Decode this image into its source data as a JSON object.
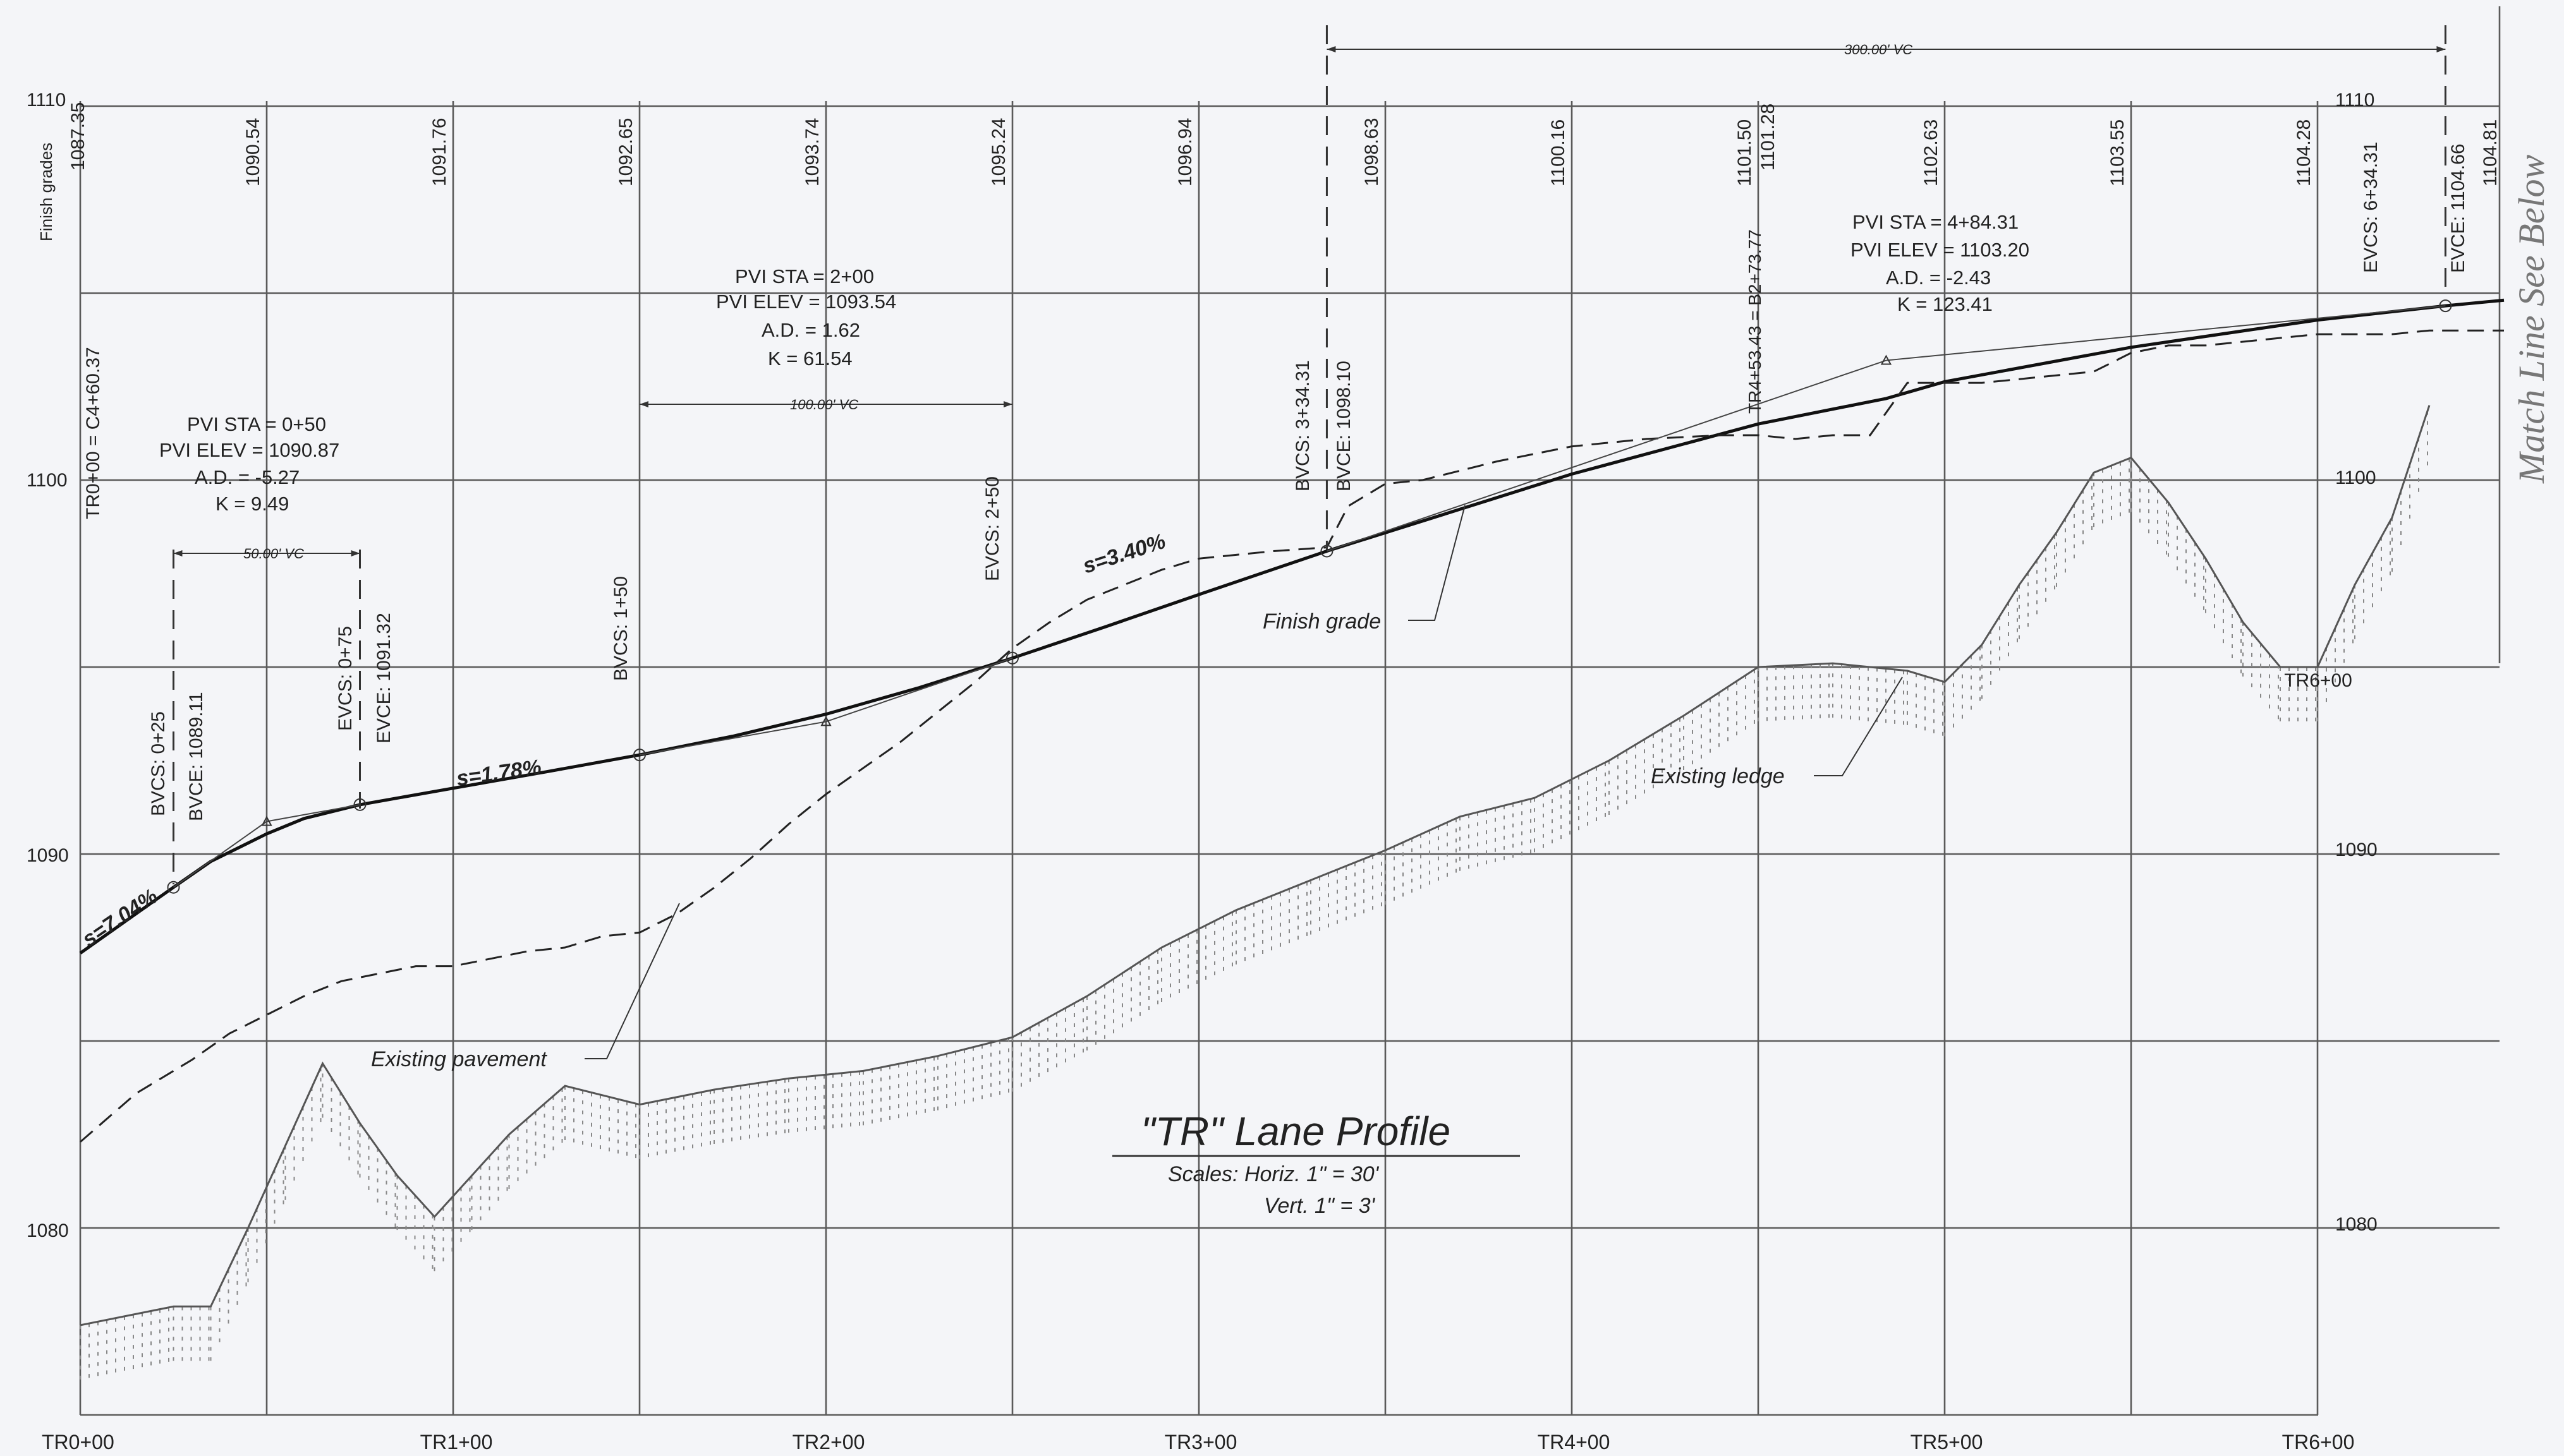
{
  "title": "\"TR\" Lane Profile",
  "scales_line1": "Scales: Horiz. 1\" = 30'",
  "scales_line2": "Vert. 1\" = 3'",
  "finish_grades_label": "Finish grades",
  "match_line": "Match Line See Below",
  "stations": [
    "TR0+00",
    "TR1+00",
    "TR2+00",
    "TR3+00",
    "TR4+00",
    "TR5+00",
    "TR6+00"
  ],
  "right_station_label": "TR6+00",
  "left_elevations": [
    "1110",
    "1100",
    "1090",
    "1080"
  ],
  "right_elevations": [
    "1110",
    "1100",
    "1090",
    "1080"
  ],
  "finish_grade_values": [
    "1087.35",
    "1090.54",
    "1091.76",
    "1092.65",
    "1093.74",
    "1095.24",
    "1096.94",
    "1098.63",
    "1100.16",
    "1101.50",
    "1102.63",
    "1103.55",
    "1104.28",
    "1104.81"
  ],
  "extra_top_value": "1101.28",
  "labels": {
    "finish_grade": "Finish grade",
    "existing_pavement": "Existing pavement",
    "existing_ledge": "Existing ledge",
    "vc_300": "300.00' VC",
    "vc_100": "100.00' VC",
    "vc_50": "50.00' VC",
    "slope1": "s=7.04%",
    "slope2": "s=1.78%",
    "slope3": "s=3.40%"
  },
  "pvi1": [
    "PVI STA = 0+50",
    "PVI ELEV = 1090.87",
    "A.D. = -5.27",
    "K = 9.49"
  ],
  "pvi2": [
    "PVI STA = 2+00",
    "PVI ELEV = 1093.54",
    "A.D. = 1.62",
    "K = 61.54"
  ],
  "pvi3": [
    "PVI STA = 4+84.31",
    "PVI ELEV = 1103.20",
    "A.D. = -2.43",
    "K = 123.41"
  ],
  "vertical_labels": {
    "tr0": "TR0+00 = C4+60.37",
    "bvcs1": "BVCS: 0+25",
    "bvce1": "BVCE: 1089.11",
    "evcs1": "EVCS: 0+75",
    "evce1": "EVCE: 1091.32",
    "bvcs2": "BVCS: 1+50",
    "evcs2": "EVCS: 2+50",
    "bvcs3": "BVCS: 3+34.31",
    "bvce3": "BVCE: 1098.10",
    "tr4": "TR4+53.43 = B2+73.77",
    "evcs3": "EVCS: 6+34.31",
    "evce3": "EVCE: 1104.66"
  },
  "chart_data": {
    "type": "line",
    "x_unit": "station (ft)",
    "y_unit": "elevation (ft)",
    "xlim": [
      0,
      650
    ],
    "ylim": [
      1075,
      1110
    ],
    "x_ticks": [
      0,
      100,
      200,
      300,
      400,
      500,
      600
    ],
    "y_ticks": [
      1080,
      1090,
      1100,
      1110
    ],
    "series": [
      {
        "name": "Finish grade",
        "x": [
          0,
          25,
          35,
          50,
          60,
          75,
          100,
          125,
          150,
          175,
          200,
          225,
          250,
          275,
          300,
          334.31,
          400,
          450,
          484.31,
          500,
          550,
          600,
          634.31,
          650
        ],
        "y": [
          1087.35,
          1089.11,
          1089.8,
          1090.54,
          1090.95,
          1091.32,
          1091.76,
          1092.2,
          1092.65,
          1093.15,
          1093.74,
          1094.45,
          1095.24,
          1096.08,
          1096.94,
          1098.1,
          1100.16,
          1101.5,
          1102.18,
          1102.63,
          1103.55,
          1104.28,
          1104.66,
          1104.81
        ]
      },
      {
        "name": "Existing pavement",
        "x": [
          0,
          15,
          30,
          40,
          50,
          60,
          70,
          80,
          90,
          100,
          110,
          120,
          130,
          140,
          150,
          160,
          170,
          180,
          190,
          200,
          210,
          220,
          230,
          240,
          250,
          260,
          270,
          280,
          290,
          300,
          310,
          320,
          334.31,
          340,
          350,
          360,
          380,
          400,
          420,
          440,
          450,
          460,
          470,
          480,
          490,
          500,
          510,
          520,
          530,
          540,
          550,
          560,
          570,
          580,
          590,
          600,
          610,
          620,
          630,
          640,
          650
        ],
        "y": [
          1082.3,
          1083.6,
          1084.5,
          1085.2,
          1085.7,
          1086.2,
          1086.6,
          1086.8,
          1087.0,
          1087.0,
          1087.2,
          1087.4,
          1087.5,
          1087.8,
          1087.9,
          1088.4,
          1089.1,
          1089.9,
          1090.8,
          1091.6,
          1092.3,
          1093.0,
          1093.8,
          1094.6,
          1095.5,
          1096.2,
          1096.8,
          1097.2,
          1097.6,
          1097.9,
          1098.0,
          1098.1,
          1098.2,
          1099.3,
          1099.9,
          1100.0,
          1100.5,
          1100.9,
          1101.1,
          1101.2,
          1101.2,
          1101.1,
          1101.2,
          1101.2,
          1102.6,
          1102.6,
          1102.6,
          1102.7,
          1102.8,
          1102.9,
          1103.4,
          1103.6,
          1103.6,
          1103.7,
          1103.8,
          1103.9,
          1103.9,
          1103.9,
          1104.0,
          1104.0,
          1104.0
        ]
      },
      {
        "name": "Existing ledge",
        "x": [
          0,
          25,
          35,
          45,
          55,
          65,
          75,
          85,
          95,
          105,
          115,
          130,
          150,
          170,
          190,
          210,
          230,
          250,
          270,
          290,
          310,
          330,
          350,
          370,
          390,
          410,
          430,
          450,
          470,
          490,
          500,
          510,
          520,
          530,
          540,
          550,
          560,
          570,
          580,
          590,
          600,
          610,
          620,
          630
        ],
        "y": [
          1077.4,
          1077.9,
          1077.9,
          1080.0,
          1082.2,
          1084.4,
          1082.8,
          1081.4,
          1080.3,
          1081.4,
          1082.5,
          1083.8,
          1083.3,
          1083.7,
          1084.0,
          1084.2,
          1084.6,
          1085.1,
          1086.2,
          1087.5,
          1088.5,
          1089.3,
          1090.1,
          1091.0,
          1091.5,
          1092.5,
          1093.7,
          1095.0,
          1095.1,
          1094.9,
          1094.6,
          1095.6,
          1097.2,
          1098.6,
          1100.2,
          1100.6,
          1099.4,
          1097.9,
          1096.2,
          1095.0,
          1095.0,
          1097.2,
          1099.0,
          1102.0
        ]
      }
    ],
    "pvis": [
      {
        "station": 50,
        "elevation": 1090.87,
        "bvc": 25,
        "evc": 75
      },
      {
        "station": 200,
        "elevation": 1093.54,
        "bvc": 150,
        "evc": 250
      },
      {
        "station": 484.31,
        "elevation": 1103.2,
        "bvc": 334.31,
        "evc": 634.31
      }
    ],
    "grid": true
  }
}
